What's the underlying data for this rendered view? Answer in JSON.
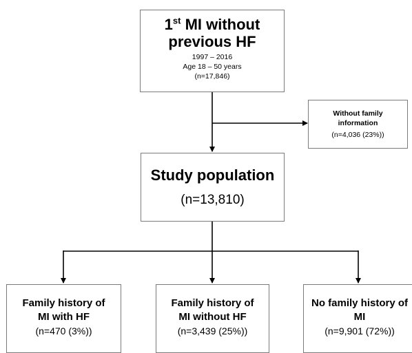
{
  "top": {
    "title_line1_num": "1",
    "title_line1_sup": "st",
    "title_line1_rest": " MI without",
    "title_line2": "previous HF",
    "years": "1997 – 2016",
    "age": "Age 18 – 50 years",
    "n": "(n=17,846)"
  },
  "exclude": {
    "line1": "Without family",
    "line2": "information",
    "n": "(n=4,036 (23%))"
  },
  "study": {
    "title": "Study population",
    "n": "(n=13,810)"
  },
  "groups": [
    {
      "line1": "Family history of",
      "line2": "MI with HF",
      "n": "(n=470 (3%))"
    },
    {
      "line1": "Family history of",
      "line2": "MI without HF",
      "n": "(n=3,439 (25%))"
    },
    {
      "line1": "No family history of",
      "line2": "MI",
      "n": "(n=9,901 (72%))"
    }
  ]
}
